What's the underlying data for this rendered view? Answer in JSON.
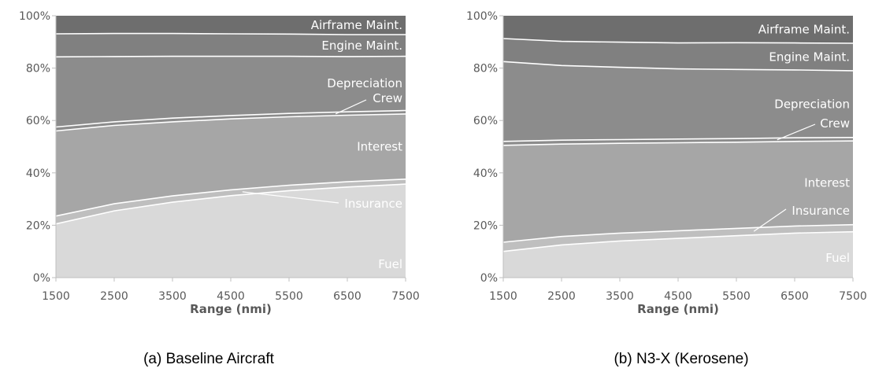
{
  "chart_data": [
    {
      "type": "area",
      "stacking": "percent",
      "caption": "(a) Baseline Aircraft",
      "xlabel": "Range (nmi)",
      "x": [
        1500,
        2500,
        3500,
        4500,
        5500,
        6500,
        7500
      ],
      "x_ticks": [
        "1500",
        "2500",
        "3500",
        "4500",
        "5500",
        "6500",
        "7500"
      ],
      "y_ticks": [
        "0%",
        "20%",
        "40%",
        "60%",
        "80%",
        "100%"
      ],
      "ylim": [
        0,
        100
      ],
      "xlim": [
        1500,
        7500
      ],
      "series": [
        {
          "name": "Fuel",
          "values": [
            20.5,
            25.5,
            28.8,
            31.3,
            33.2,
            34.6,
            35.7
          ],
          "color": "#d9d9d9"
        },
        {
          "name": "Insurance",
          "values": [
            3.0,
            2.7,
            2.4,
            2.2,
            2.1,
            2.0,
            1.9
          ],
          "color": "#bfbfbf"
        },
        {
          "name": "Interest",
          "values": [
            32.5,
            29.9,
            28.3,
            27.1,
            26.1,
            25.4,
            24.9
          ],
          "color": "#a6a6a6"
        },
        {
          "name": "Crew",
          "values": [
            1.5,
            1.4,
            1.4,
            1.3,
            1.3,
            1.3,
            1.3
          ],
          "color": "#8c8c8c"
        },
        {
          "name": "Depreciation",
          "values": [
            26.8,
            24.9,
            23.6,
            22.6,
            21.8,
            21.1,
            20.7
          ],
          "color": "#8c8c8c"
        },
        {
          "name": "Engine Maint.",
          "values": [
            8.8,
            8.8,
            8.7,
            8.6,
            8.5,
            8.4,
            8.3
          ],
          "color": "#808080"
        },
        {
          "name": "Airframe Maint.",
          "values": [
            6.9,
            6.8,
            6.8,
            6.9,
            7.0,
            7.2,
            7.2
          ],
          "color": "#6e6e6e"
        }
      ],
      "annotations": [
        "Airframe Maint.",
        "Engine Maint.",
        "Depreciation",
        "Crew",
        "Interest",
        "Insurance",
        "Fuel"
      ]
    },
    {
      "type": "area",
      "stacking": "percent",
      "caption": "(b) N3-X (Kerosene)",
      "xlabel": "Range (nmi)",
      "x": [
        1500,
        2500,
        3500,
        4500,
        5500,
        6500,
        7500
      ],
      "x_ticks": [
        "1500",
        "2500",
        "3500",
        "4500",
        "5500",
        "6500",
        "7500"
      ],
      "y_ticks": [
        "0%",
        "20%",
        "40%",
        "60%",
        "80%",
        "100%"
      ],
      "ylim": [
        0,
        100
      ],
      "xlim": [
        1500,
        7500
      ],
      "series": [
        {
          "name": "Fuel",
          "values": [
            10.0,
            12.5,
            14.0,
            15.0,
            16.0,
            17.0,
            17.5
          ],
          "color": "#d9d9d9"
        },
        {
          "name": "Insurance",
          "values": [
            3.5,
            3.2,
            3.0,
            2.9,
            2.8,
            2.7,
            2.7
          ],
          "color": "#bfbfbf"
        },
        {
          "name": "Interest",
          "values": [
            37.0,
            35.3,
            34.3,
            33.6,
            32.9,
            32.3,
            32.0
          ],
          "color": "#a6a6a6"
        },
        {
          "name": "Crew",
          "values": [
            1.5,
            1.5,
            1.4,
            1.4,
            1.4,
            1.4,
            1.3
          ],
          "color": "#8c8c8c"
        },
        {
          "name": "Depreciation",
          "values": [
            30.5,
            28.5,
            27.6,
            26.8,
            26.4,
            25.9,
            25.5
          ],
          "color": "#8c8c8c"
        },
        {
          "name": "Engine Maint.",
          "values": [
            8.8,
            9.2,
            9.6,
            9.9,
            10.2,
            10.3,
            10.5
          ],
          "color": "#808080"
        },
        {
          "name": "Airframe Maint.",
          "values": [
            8.7,
            9.8,
            10.1,
            10.4,
            10.3,
            10.4,
            10.5
          ],
          "color": "#6e6e6e"
        }
      ],
      "annotations": [
        "Airframe Maint.",
        "Engine Maint.",
        "Depreciation",
        "Crew",
        "Interest",
        "Insurance",
        "Fuel"
      ]
    }
  ]
}
